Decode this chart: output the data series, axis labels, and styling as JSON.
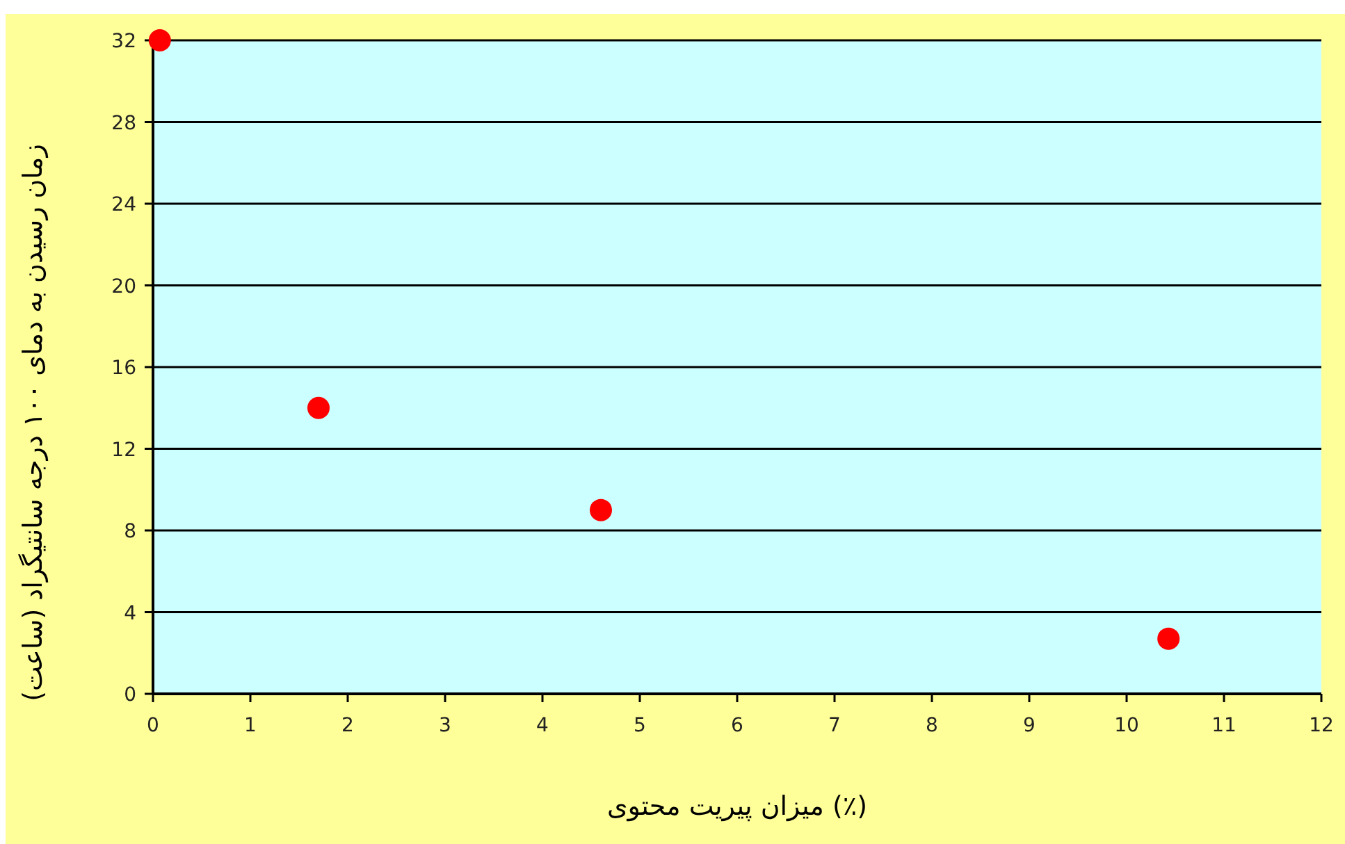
{
  "chart_data": {
    "type": "scatter",
    "xlabel": "میزان پیریت محتوی (٪)",
    "ylabel": "زمان رسیدن به دمای ۱۰۰ درجه سانتیگراد (ساعت)",
    "x": [
      0.07,
      1.7,
      4.6,
      10.43
    ],
    "series": [
      {
        "color": "#ff0000",
        "values": [
          32,
          14,
          9,
          2.7
        ]
      }
    ],
    "xlim": [
      0,
      12
    ],
    "xticks": [
      0,
      1,
      2,
      3,
      4,
      5,
      6,
      7,
      8,
      9,
      10,
      11,
      12
    ],
    "ylim": [
      0,
      32
    ],
    "yticks": [
      0,
      4,
      8,
      12,
      16,
      20,
      24,
      28,
      32
    ],
    "grid": "y",
    "marker": "circle"
  }
}
